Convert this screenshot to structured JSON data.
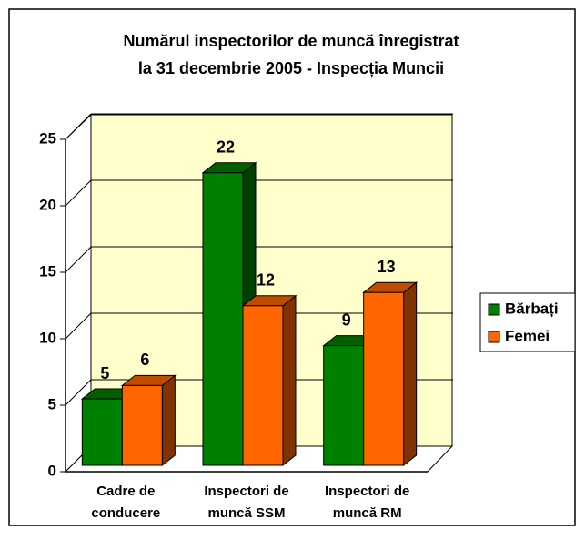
{
  "chart_data": {
    "type": "bar3d",
    "title": [
      "Numărul inspectorilor de muncă înregistrat",
      "la 31 decembrie 2005 - Inspecția Muncii"
    ],
    "categories": [
      [
        "Cadre de",
        "conducere"
      ],
      [
        "Inspectori de",
        "muncă SSM"
      ],
      [
        "Inspectori de",
        "muncă RM"
      ]
    ],
    "series": [
      {
        "name": "Bărbați",
        "color": "#008000",
        "side": "#004000",
        "top": "#006000",
        "values": [
          5,
          22,
          9
        ]
      },
      {
        "name": "Femei",
        "color": "#ff6600",
        "side": "#803300",
        "top": "#c04c00",
        "values": [
          6,
          12,
          13
        ]
      }
    ],
    "ylim": [
      0,
      25
    ],
    "yticks": [
      0,
      5,
      10,
      15,
      20,
      25
    ],
    "grid": true,
    "legend": "right"
  }
}
